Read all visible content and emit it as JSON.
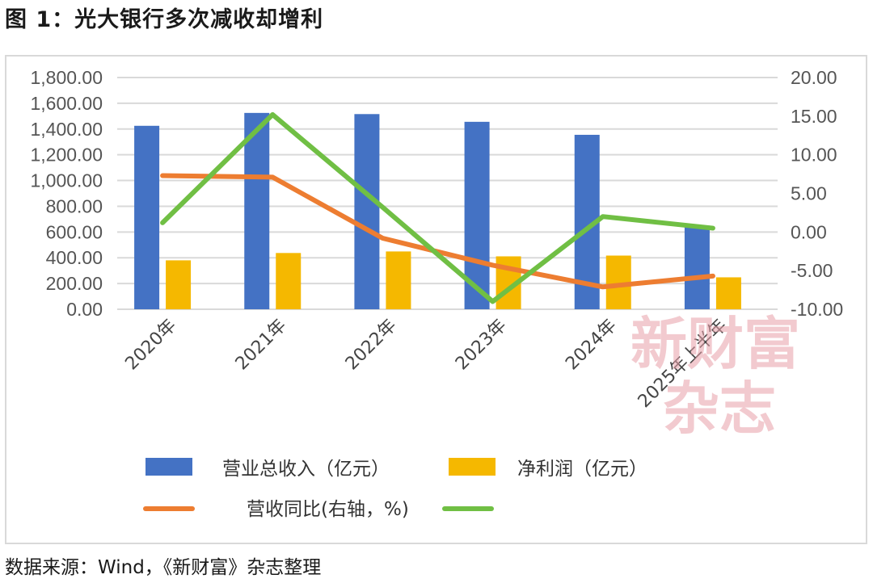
{
  "figure_title": "图 1：光大银行多次减收却增利",
  "source_note": "数据来源：Wind，《新财富》杂志整理",
  "watermark": {
    "line1": "新财富",
    "line2": "杂志"
  },
  "colors": {
    "revenue": "#4472C4",
    "profit": "#F5B800",
    "revenue_yoy": "#ED7D31",
    "profit_yoy": "#70BF44",
    "grid": "#d9d9d9"
  },
  "chart_data": {
    "type": "bar",
    "categories": [
      "2020年",
      "2021年",
      "2022年",
      "2023年",
      "2024年",
      "2025年上半年"
    ],
    "left_axis": {
      "min": 0,
      "max": 1800,
      "step": 200,
      "ticks": [
        "0.00",
        "200.00",
        "400.00",
        "600.00",
        "800.00",
        "1,000.00",
        "1,200.00",
        "1,400.00",
        "1,600.00",
        "1,800.00"
      ]
    },
    "right_axis": {
      "min": -10,
      "max": 20,
      "step": 5,
      "ticks": [
        "-10.00",
        "-5.00",
        "0.00",
        "5.00",
        "10.00",
        "15.00",
        "20.00"
      ]
    },
    "series": [
      {
        "name": "营业总收入（亿元）",
        "kind": "bar",
        "axis": "left",
        "values": [
          1425,
          1525,
          1516,
          1456,
          1355,
          650
        ]
      },
      {
        "name": "净利润（亿元）",
        "kind": "bar",
        "axis": "left",
        "values": [
          380,
          437,
          449,
          411,
          417,
          248
        ]
      },
      {
        "name": "营收同比(右轴，%)",
        "kind": "line",
        "axis": "right",
        "values": [
          7.3,
          7.1,
          -0.8,
          -4.3,
          -7.1,
          -5.7
        ]
      },
      {
        "name": "",
        "kind": "line",
        "axis": "right",
        "values": [
          1.2,
          15.2,
          3.2,
          -9.0,
          2.0,
          0.5
        ]
      }
    ],
    "legend_position": "bottom",
    "grid": true
  }
}
